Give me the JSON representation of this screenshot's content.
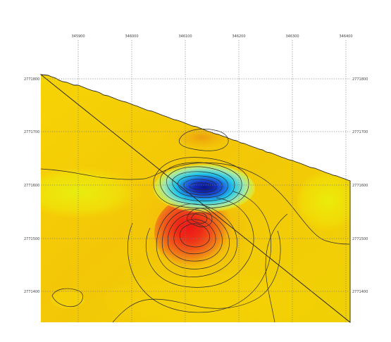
{
  "map": {
    "x_ticks": [
      "345900",
      "346000",
      "346100",
      "346200",
      "346300",
      "346400"
    ],
    "y_ticks_left": [
      "2771800",
      "2771700",
      "2771600",
      "2771500",
      "2771400"
    ],
    "y_ticks_right": [
      "2771800",
      "2771700",
      "2771600",
      "2771500",
      "2771400"
    ],
    "colors": {
      "background": "#ffffff",
      "field_low": "#e8ee0a",
      "field_base": "#f6d504",
      "field_mid": "#f1b000",
      "anomaly_positive": "#e81010",
      "anomaly_negative": "#0c1f8f",
      "anomaly_negative_edge": "#18d8e0",
      "grid": "#7a7a7a",
      "contour": "#2b2b2b"
    }
  }
}
